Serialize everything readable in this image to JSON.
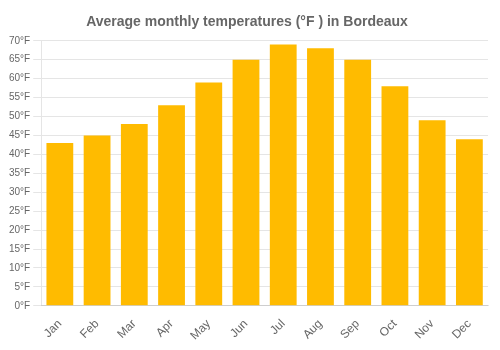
{
  "chart_data": {
    "type": "bar",
    "title": "Average monthly temperatures (°F ) in Bordeaux",
    "categories": [
      "Jan",
      "Feb",
      "Mar",
      "Apr",
      "May",
      "Jun",
      "Jul",
      "Aug",
      "Sep",
      "Oct",
      "Nov",
      "Dec"
    ],
    "values": [
      43,
      45,
      48,
      53,
      59,
      65,
      69,
      68,
      65,
      58,
      49,
      44
    ],
    "color": "#FFBB00",
    "ylim": [
      0,
      70
    ],
    "yticks": [
      {
        "value": 0,
        "label": "0°F"
      },
      {
        "value": 5,
        "label": "5°F"
      },
      {
        "value": 10,
        "label": "10°F"
      },
      {
        "value": 15,
        "label": "15°F"
      },
      {
        "value": 20,
        "label": "20°F"
      },
      {
        "value": 25,
        "label": "25°F"
      },
      {
        "value": 30,
        "label": "30°F"
      },
      {
        "value": 35,
        "label": "35°F"
      },
      {
        "value": 40,
        "label": "40°F"
      },
      {
        "value": 45,
        "label": "45°F"
      },
      {
        "value": 50,
        "label": "50°F"
      },
      {
        "value": 55,
        "label": "55°F"
      },
      {
        "value": 60,
        "label": "60°F"
      },
      {
        "value": 65,
        "label": "65°F"
      },
      {
        "value": 70,
        "label": "70°F"
      }
    ],
    "grid": "y"
  }
}
